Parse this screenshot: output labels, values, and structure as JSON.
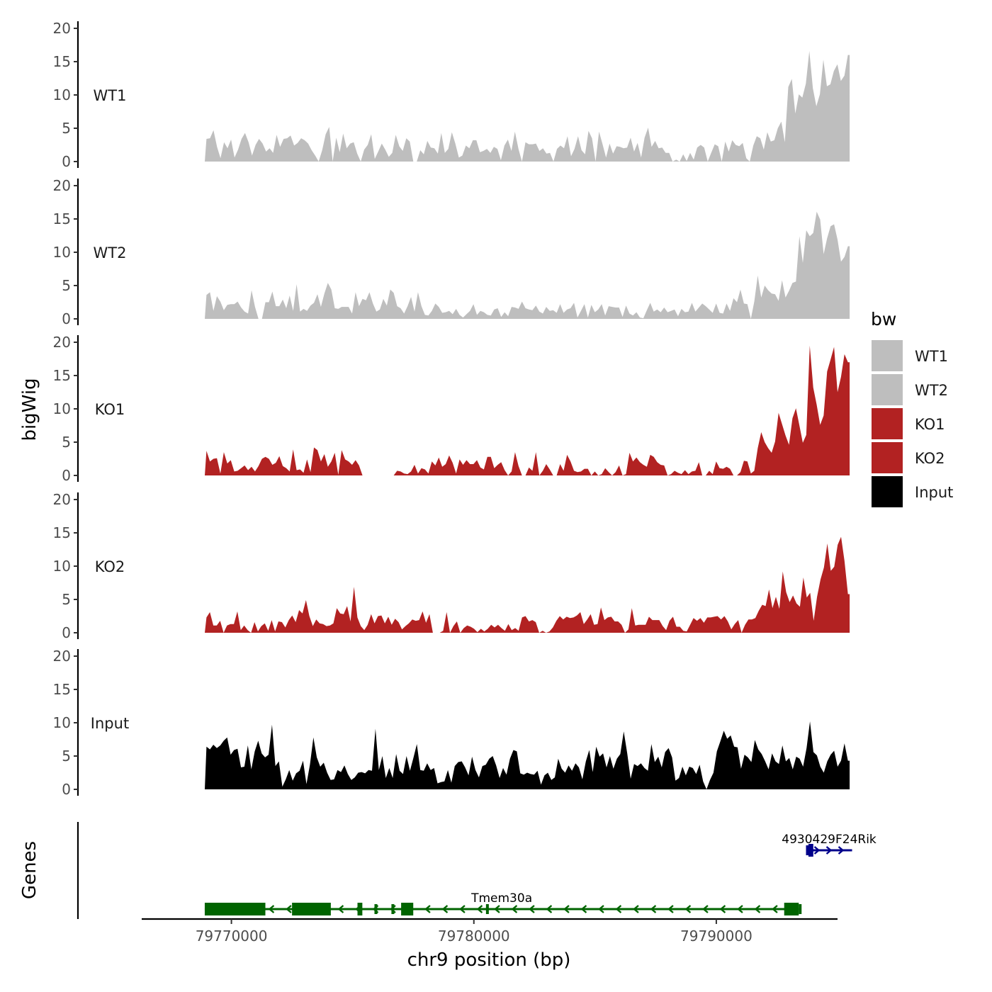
{
  "chart_data": {
    "type": "area",
    "chromosome": "chr9",
    "xlabel": "chr9 position (bp)",
    "ylabel": "bigWig",
    "genes_track_label": "Genes",
    "xlim": [
      79766300,
      79795000
    ],
    "signal_range": [
      79768900,
      79795500
    ],
    "ylim": [
      0,
      20
    ],
    "x_ticks": [
      79770000,
      79780000,
      79790000
    ],
    "x_tick_labels": [
      "79770000",
      "79780000",
      "79790000"
    ],
    "y_ticks": [
      0,
      5,
      10,
      15,
      20
    ],
    "y_tick_labels": [
      "0",
      "5",
      "10",
      "15",
      "20"
    ],
    "legend": {
      "title": "bw",
      "items": [
        {
          "label": "WT1",
          "color": "#bebebe"
        },
        {
          "label": "WT2",
          "color": "#bebebe"
        },
        {
          "label": "KO1",
          "color": "#b22222"
        },
        {
          "label": "KO2",
          "color": "#b22222"
        },
        {
          "label": "Input",
          "color": "#000000"
        }
      ]
    },
    "series": [
      {
        "name": "WT1",
        "color": "#bebebe",
        "bins": 180,
        "values": [
          3.4,
          3.5,
          4.7,
          2.2,
          0.5,
          2.9,
          2.0,
          3.3,
          0.6,
          1.8,
          3.4,
          4.3,
          2.9,
          0.9,
          2.5,
          3.4,
          2.7,
          1.5,
          2.0,
          1.3,
          4.0,
          2.2,
          3.4,
          3.5,
          3.9,
          2.4,
          2.8,
          3.5,
          3.2,
          2.7,
          1.7,
          0.9,
          0.0,
          1.7,
          4.1,
          5.2,
          0.0,
          3.6,
          1.4,
          4.2,
          2.0,
          2.7,
          2.9,
          1.2,
          0.0,
          1.8,
          2.5,
          4.1,
          0.4,
          1.5,
          2.7,
          1.8,
          0.7,
          1.3,
          4.0,
          2.3,
          1.6,
          3.5,
          3.0,
          0.0,
          0.0,
          1.7,
          1.1,
          3.1,
          2.1,
          2.0,
          1.2,
          4.3,
          1.3,
          1.9,
          4.4,
          2.7,
          0.6,
          0.9,
          2.4,
          2.0,
          3.2,
          3.2,
          1.4,
          1.6,
          1.9,
          1.3,
          2.2,
          1.9,
          0.2,
          2.4,
          3.3,
          1.6,
          4.5,
          1.9,
          0.0,
          2.9,
          2.6,
          2.6,
          2.7,
          1.6,
          2.0,
          1.2,
          1.3,
          0.0,
          1.9,
          2.4,
          2.0,
          3.8,
          0.8,
          1.9,
          3.8,
          1.7,
          1.1,
          4.6,
          3.5,
          0.0,
          4.5,
          2.6,
          0.6,
          2.7,
          1.2,
          2.3,
          2.2,
          2.0,
          2.1,
          3.6,
          1.5,
          2.8,
          0.6,
          3.6,
          5.1,
          2.2,
          3.1,
          2.0,
          2.1,
          1.3,
          1.3,
          0.0,
          0.3,
          0.0,
          1.1,
          0.1,
          1.3,
          0.3,
          2.1,
          2.5,
          2.1,
          0.0,
          1.3,
          2.6,
          2.3,
          0.0,
          3.0,
          1.5,
          3.2,
          2.5,
          2.3,
          2.8,
          0.5,
          0.0,
          2.4,
          3.8,
          3.5,
          1.8,
          4.4,
          3.0,
          3.2,
          5.0,
          6.0,
          2.9,
          11.2,
          12.4,
          7.2,
          10.1,
          9.6,
          11.7,
          16.6,
          11.0,
          8.3,
          10.1,
          15.3,
          11.3,
          11.6,
          13.6,
          14.6,
          12.1,
          12.9,
          16.0
        ]
      },
      {
        "name": "WT2",
        "color": "#bebebe",
        "bins": 180,
        "values": [
          3.6,
          4.0,
          1.2,
          3.4,
          2.6,
          1.3,
          2.1,
          2.2,
          2.2,
          2.6,
          1.7,
          1.1,
          0.8,
          4.3,
          1.8,
          0.0,
          0.0,
          2.5,
          2.5,
          4.1,
          1.9,
          1.9,
          2.9,
          1.6,
          3.5,
          1.2,
          5.2,
          1.1,
          1.5,
          1.2,
          2.0,
          2.4,
          3.7,
          1.8,
          3.8,
          5.4,
          4.4,
          1.6,
          1.5,
          1.8,
          1.8,
          1.8,
          0.8,
          4.0,
          1.9,
          3.0,
          2.8,
          4.0,
          2.3,
          1.1,
          1.4,
          3.0,
          2.0,
          4.4,
          3.9,
          1.9,
          1.6,
          0.8,
          1.9,
          3.3,
          1.1,
          4.0,
          1.9,
          0.6,
          0.5,
          1.2,
          2.3,
          1.8,
          0.9,
          1.0,
          1.2,
          0.7,
          1.5,
          0.6,
          0.2,
          0.7,
          1.2,
          2.2,
          0.6,
          1.2,
          1.0,
          0.6,
          0.5,
          1.4,
          1.6,
          0.3,
          1.0,
          0.4,
          1.8,
          1.7,
          1.5,
          2.6,
          1.6,
          1.4,
          1.3,
          2.0,
          1.1,
          0.8,
          1.8,
          1.2,
          1.3,
          0.9,
          2.2,
          0.9,
          1.4,
          1.6,
          2.4,
          0.2,
          1.2,
          2.2,
          0.2,
          2.1,
          1.0,
          1.4,
          2.2,
          0.5,
          1.9,
          1.8,
          1.7,
          1.7,
          0.3,
          2.0,
          0.8,
          0.5,
          1.0,
          0.2,
          0.1,
          1.3,
          2.4,
          1.1,
          1.4,
          1.0,
          1.7,
          1.0,
          1.2,
          1.4,
          0.4,
          1.5,
          1.0,
          1.1,
          2.4,
          1.1,
          1.7,
          2.3,
          1.9,
          1.4,
          0.9,
          2.3,
          0.9,
          0.8,
          2.3,
          1.2,
          3.1,
          2.5,
          4.4,
          2.3,
          2.2,
          0.0,
          2.6,
          6.5,
          3.2,
          5.0,
          4.3,
          3.8,
          3.7,
          2.7,
          5.8,
          3.2,
          4.2,
          5.4,
          5.6,
          12.4,
          8.4,
          13.3,
          12.4,
          12.9,
          16.1,
          14.9,
          9.7,
          12.1,
          13.9,
          14.2,
          11.9,
          8.6,
          9.3,
          10.9
        ]
      },
      {
        "name": "KO1",
        "color": "#b22222",
        "bins": 180,
        "values": [
          3.7,
          2.1,
          2.5,
          2.6,
          0.3,
          3.5,
          1.8,
          2.3,
          0.6,
          0.7,
          1.1,
          1.5,
          0.8,
          1.3,
          0.6,
          1.4,
          2.5,
          2.8,
          2.5,
          1.6,
          1.9,
          2.9,
          1.4,
          1.1,
          0.6,
          3.9,
          0.8,
          0.9,
          0.4,
          2.4,
          0.5,
          4.2,
          3.8,
          2.1,
          3.2,
          1.3,
          2.1,
          3.4,
          0.1,
          3.8,
          2.4,
          2.1,
          1.6,
          2.3,
          1.5,
          0.0,
          0.0,
          0.0,
          0.0,
          0.0,
          0.0,
          0.0,
          0.0,
          0.0,
          0.0,
          0.7,
          0.6,
          0.3,
          0.2,
          0.6,
          1.6,
          0.3,
          1.1,
          0.9,
          0.3,
          2.1,
          1.5,
          2.7,
          1.3,
          1.7,
          3.0,
          1.9,
          0.3,
          2.4,
          1.6,
          2.3,
          1.7,
          1.7,
          2.3,
          1.2,
          0.9,
          2.8,
          2.8,
          1.1,
          1.6,
          2.0,
          0.8,
          0.0,
          0.6,
          3.5,
          1.4,
          0.0,
          0.0,
          1.2,
          0.7,
          3.5,
          0.0,
          0.7,
          1.7,
          0.9,
          0.0,
          0.0,
          1.7,
          0.7,
          3.1,
          2.1,
          0.7,
          0.5,
          0.6,
          1.0,
          1.0,
          0.0,
          0.6,
          0.0,
          0.2,
          1.1,
          0.5,
          0.0,
          0.5,
          1.5,
          0.0,
          0.2,
          3.4,
          2.1,
          2.7,
          2.0,
          1.6,
          1.3,
          3.1,
          2.8,
          2.0,
          1.6,
          1.5,
          0.0,
          0.2,
          0.7,
          0.4,
          0.2,
          0.8,
          0.2,
          0.6,
          0.7,
          2.0,
          0.0,
          0.0,
          0.7,
          0.2,
          2.1,
          1.1,
          1.0,
          1.3,
          1.0,
          0.0,
          0.0,
          0.5,
          2.2,
          2.1,
          0.3,
          0.7,
          4.1,
          6.5,
          5.0,
          4.1,
          3.4,
          5.1,
          9.4,
          7.7,
          6.0,
          4.6,
          8.6,
          10.1,
          7.5,
          4.9,
          6.1,
          19.5,
          13.2,
          10.6,
          7.6,
          9.0,
          15.6,
          17.4,
          19.3,
          12.5,
          14.8,
          18.2,
          17.0
        ]
      },
      {
        "name": "KO2",
        "color": "#b22222",
        "bins": 180,
        "values": [
          2.3,
          3.1,
          1.1,
          1.1,
          1.8,
          0.0,
          1.1,
          1.3,
          1.3,
          3.2,
          0.4,
          1.1,
          0.4,
          0.0,
          1.6,
          0.2,
          1.0,
          1.4,
          0.3,
          1.9,
          0.2,
          1.7,
          1.6,
          0.8,
          1.9,
          2.6,
          1.6,
          3.4,
          2.9,
          4.9,
          2.5,
          1.0,
          2.0,
          1.4,
          1.3,
          1.0,
          1.1,
          1.4,
          3.7,
          2.9,
          2.8,
          4.0,
          1.7,
          6.9,
          2.3,
          1.0,
          0.4,
          1.2,
          2.8,
          1.4,
          2.5,
          2.6,
          1.4,
          2.4,
          1.2,
          2.1,
          1.6,
          0.5,
          1.0,
          1.4,
          2.0,
          1.8,
          1.9,
          3.2,
          1.5,
          2.8,
          0.0,
          0.0,
          0.0,
          0.3,
          3.1,
          0.0,
          1.0,
          1.7,
          0.0,
          0.7,
          1.1,
          0.9,
          0.6,
          0.1,
          0.6,
          0.2,
          0.6,
          1.2,
          0.8,
          1.2,
          0.7,
          0.3,
          1.3,
          0.4,
          0.7,
          0.3,
          2.3,
          2.5,
          1.7,
          1.9,
          1.6,
          0.0,
          0.3,
          0.0,
          0.2,
          0.8,
          1.8,
          2.5,
          2.0,
          2.4,
          2.2,
          2.3,
          2.6,
          3.1,
          1.3,
          2.0,
          2.8,
          1.2,
          1.3,
          3.8,
          1.9,
          2.3,
          2.4,
          1.7,
          1.7,
          1.2,
          0.0,
          0.5,
          3.7,
          1.1,
          1.2,
          1.2,
          1.2,
          2.4,
          1.9,
          1.9,
          1.9,
          1.0,
          0.4,
          1.8,
          2.4,
          0.9,
          0.9,
          0.3,
          0.2,
          1.2,
          2.2,
          1.8,
          2.2,
          1.5,
          2.3,
          2.3,
          2.4,
          2.5,
          2.0,
          2.5,
          1.7,
          0.5,
          1.3,
          1.9,
          0.0,
          1.2,
          2.0,
          2.0,
          2.2,
          3.3,
          4.2,
          4.0,
          6.5,
          3.7,
          5.4,
          3.6,
          9.2,
          6.1,
          4.6,
          5.6,
          4.4,
          3.9,
          8.3,
          5.3,
          6.0,
          1.8,
          5.4,
          8.0,
          9.8,
          13.4,
          9.3,
          9.9,
          13.2,
          14.4,
          10.8,
          5.8
        ]
      },
      {
        "name": "Input",
        "color": "#000000",
        "bins": 180,
        "values": [
          6.4,
          6.0,
          6.7,
          6.2,
          6.6,
          7.3,
          7.8,
          5.2,
          5.9,
          6.1,
          3.3,
          3.4,
          6.6,
          3.0,
          5.7,
          7.3,
          5.4,
          4.8,
          5.2,
          9.7,
          3.5,
          4.2,
          0.4,
          1.5,
          2.9,
          1.3,
          2.4,
          2.8,
          4.3,
          0.8,
          3.7,
          7.8,
          4.8,
          3.4,
          4.0,
          2.5,
          1.4,
          1.5,
          2.9,
          2.6,
          3.6,
          2.3,
          1.4,
          1.8,
          2.5,
          2.6,
          2.4,
          2.9,
          2.8,
          9.1,
          2.9,
          5.0,
          1.7,
          3.2,
          1.7,
          5.3,
          2.8,
          2.3,
          5.0,
          2.8,
          4.7,
          6.8,
          2.9,
          2.8,
          3.9,
          2.9,
          3.2,
          0.9,
          1.1,
          1.2,
          2.9,
          1.0,
          3.5,
          4.1,
          4.2,
          3.3,
          2.1,
          4.9,
          2.9,
          1.8,
          3.5,
          3.7,
          4.6,
          5.0,
          3.6,
          1.7,
          3.2,
          2.2,
          4.6,
          5.9,
          5.7,
          2.4,
          2.2,
          2.5,
          2.3,
          2.2,
          2.8,
          0.7,
          2.1,
          2.5,
          1.4,
          1.8,
          4.6,
          3.1,
          2.5,
          3.6,
          2.8,
          3.9,
          3.3,
          1.5,
          4.2,
          5.9,
          2.6,
          6.4,
          4.9,
          5.4,
          3.3,
          5.0,
          3.1,
          4.6,
          5.3,
          8.7,
          5.4,
          1.6,
          3.8,
          3.5,
          3.9,
          3.2,
          2.8,
          6.8,
          4.1,
          4.9,
          3.3,
          5.6,
          6.2,
          4.8,
          1.3,
          1.7,
          3.4,
          2.1,
          3.4,
          3.2,
          2.3,
          3.7,
          1.2,
          0.0,
          1.4,
          2.5,
          5.7,
          7.2,
          8.8,
          7.6,
          8.1,
          6.4,
          6.3,
          3.1,
          5.2,
          4.8,
          4.1,
          7.4,
          6.0,
          5.3,
          4.2,
          3.0,
          5.4,
          4.2,
          3.8,
          6.6,
          4.2,
          4.7,
          3.0,
          4.9,
          4.6,
          3.4,
          6.2,
          10.2,
          5.6,
          5.1,
          3.4,
          2.5,
          4.2,
          5.2,
          5.8,
          3.4,
          4.3,
          6.9,
          4.3
        ]
      }
    ],
    "genes": [
      {
        "name": "Tmem30a",
        "strand": "-",
        "color": "#006400",
        "start": 79768900,
        "end": 79793400,
        "exons": [
          [
            79768900,
            79771400
          ],
          [
            79772500,
            79774100
          ],
          [
            79775200,
            79775400
          ],
          [
            79777000,
            79777500
          ],
          [
            79792800,
            79793400
          ]
        ],
        "utr_exons": [
          [
            79775900,
            79775950
          ],
          [
            79776600,
            79776650
          ],
          [
            79780500,
            79780550
          ],
          [
            79793400,
            79793500
          ]
        ]
      },
      {
        "name": "4930429F24Rik",
        "strand": "+",
        "color": "#00008b",
        "start": 79793700,
        "end": 79795600,
        "exons": [
          [
            79793800,
            79794000
          ]
        ],
        "utr_exons": [
          [
            79793700,
            79793750
          ]
        ]
      }
    ]
  }
}
